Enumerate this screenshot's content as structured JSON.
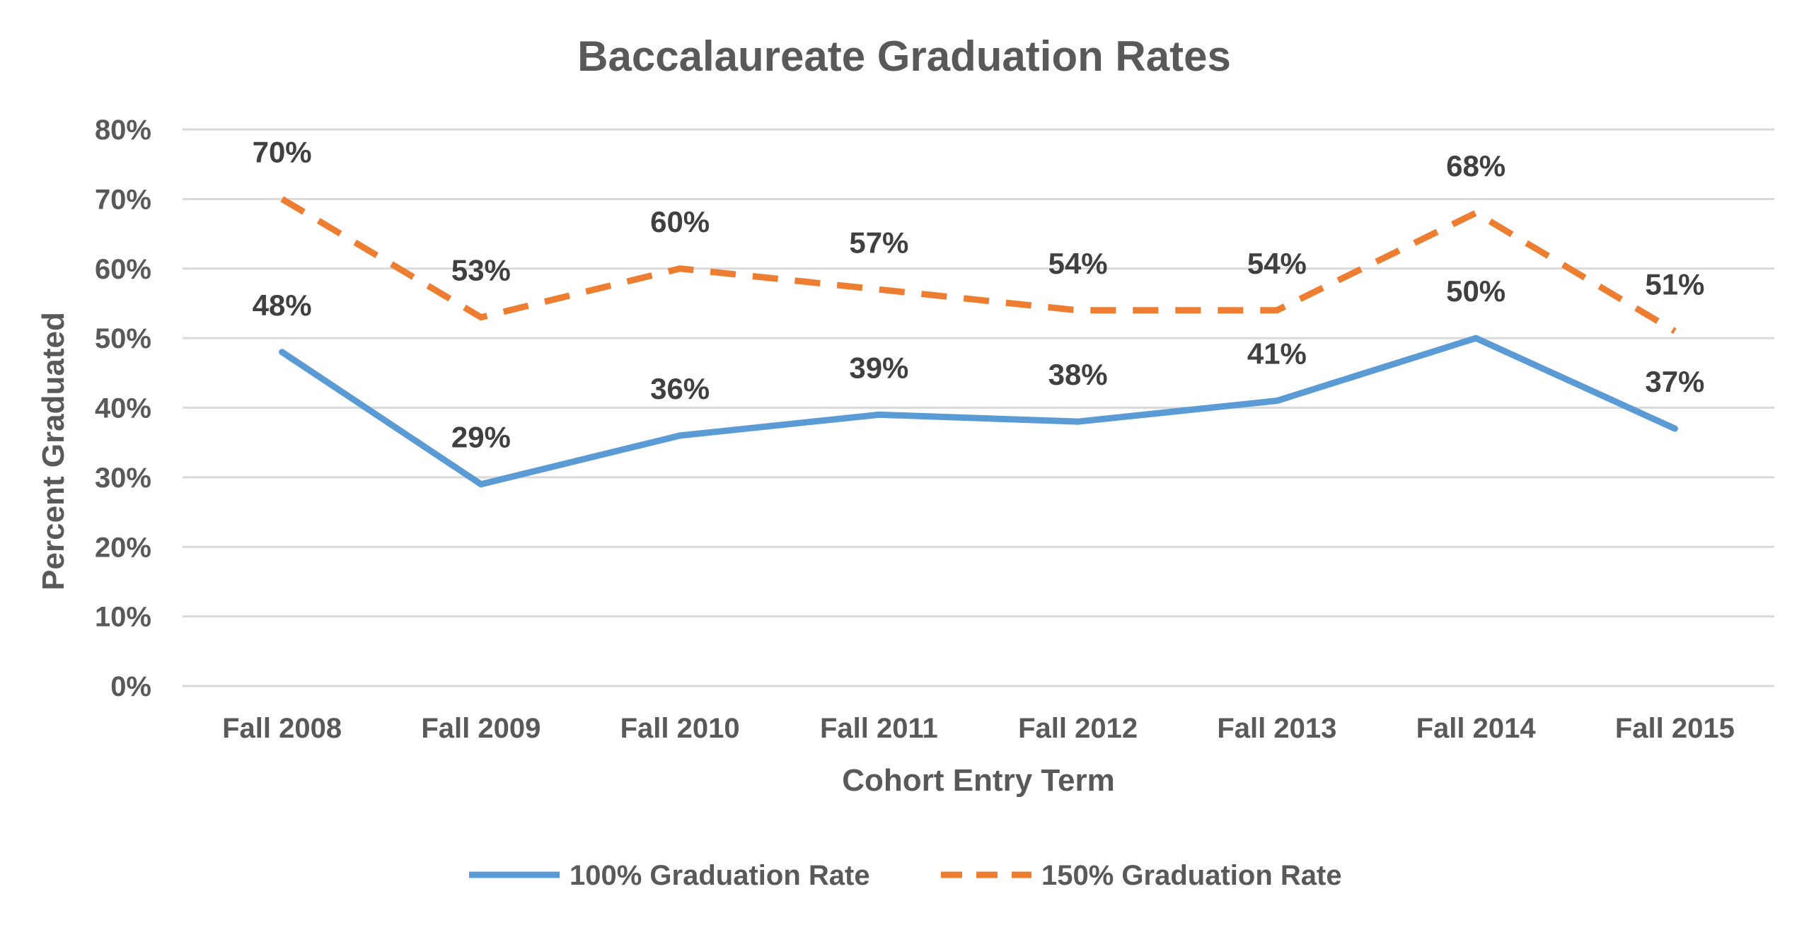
{
  "chart_data": {
    "type": "line",
    "title": "Baccalaureate Graduation Rates",
    "xlabel": "Cohort Entry Term",
    "ylabel": "Percent Graduated",
    "categories": [
      "Fall 2008",
      "Fall 2009",
      "Fall 2010",
      "Fall 2011",
      "Fall 2012",
      "Fall 2013",
      "Fall 2014",
      "Fall 2015"
    ],
    "ylim": [
      0,
      80
    ],
    "yticks": [
      "0%",
      "10%",
      "20%",
      "30%",
      "40%",
      "50%",
      "60%",
      "70%",
      "80%"
    ],
    "grid": true,
    "legend_position": "bottom",
    "series": [
      {
        "name": "100% Graduation Rate",
        "values": [
          48,
          29,
          36,
          39,
          38,
          41,
          50,
          37
        ],
        "labels": [
          "48%",
          "29%",
          "36%",
          "39%",
          "38%",
          "41%",
          "50%",
          "37%"
        ],
        "color": "#5b9bd5",
        "style": "solid"
      },
      {
        "name": "150% Graduation Rate",
        "values": [
          70,
          53,
          60,
          57,
          54,
          54,
          68,
          51
        ],
        "labels": [
          "70%",
          "53%",
          "60%",
          "57%",
          "54%",
          "54%",
          "68%",
          "51%"
        ],
        "color": "#ed7d31",
        "style": "dashed"
      }
    ]
  }
}
